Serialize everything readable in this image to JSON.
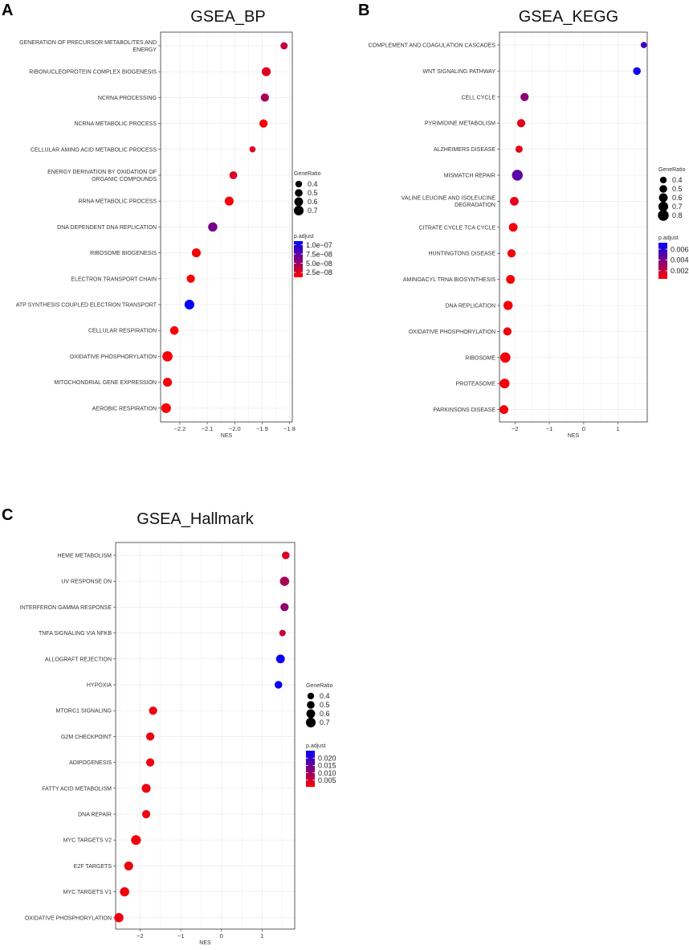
{
  "colors": {
    "low": "#ff0000",
    "high": "#0000ff",
    "grid": "#ebebeb",
    "frame": "#333333"
  },
  "chart_data": [
    {
      "id": "A",
      "panel_label": "A",
      "type": "scatter",
      "title": "GSEA_BP",
      "xlabel": "NES",
      "xlim": [
        -2.27,
        -1.79
      ],
      "xticks": [
        -2.2,
        -2.1,
        -2.0,
        -1.9,
        -1.8
      ],
      "xtick_labels": [
        "−2.2",
        "−2.1",
        "−2.0",
        "−1.9",
        "−1.8"
      ],
      "categories": [
        "GENERATION OF PRECURSOR METABOLITES AND ENERGY",
        "RIBONUCLEOPROTEIN COMPLEX BIOGENESIS",
        "NCRNA PROCESSING",
        "NCRNA METABOLIC PROCESS",
        "CELLULAR AMINO ACID METABOLIC PROCESS",
        "ENERGY DERIVATION BY OXIDATION OF ORGANIC COMPOUNDS",
        "RRNA METABOLIC PROCESS",
        "DNA DEPENDENT DNA REPLICATION",
        "RIBOSOME BIOGENESIS",
        "ELECTRON TRANSPORT CHAIN",
        "ATP SYNTHESIS COUPLED ELECTRON TRANSPORT",
        "CELLULAR RESPIRATION",
        "OXIDATIVE PHOSPHORYLATION",
        "MITOCHONDRIAL GENE EXPRESSION",
        "AEROBIC RESPIRATION"
      ],
      "label_lines": [
        [
          "GENERATION OF PRECURSOR METABOLITES AND",
          "ENERGY"
        ],
        [
          "RIBONUCLEOPROTEIN COMPLEX BIOGENESIS"
        ],
        [
          "NCRNA PROCESSING"
        ],
        [
          "NCRNA METABOLIC PROCESS"
        ],
        [
          "CELLULAR AMINO ACID METABOLIC PROCESS"
        ],
        [
          "ENERGY DERIVATION BY OXIDATION OF",
          "ORGANIC COMPOUNDS"
        ],
        [
          "RRNA METABOLIC PROCESS"
        ],
        [
          "DNA DEPENDENT DNA REPLICATION"
        ],
        [
          "RIBOSOME BIOGENESIS"
        ],
        [
          "ELECTRON TRANSPORT CHAIN"
        ],
        [
          "ATP SYNTHESIS COUPLED ELECTRON TRANSPORT"
        ],
        [
          "CELLULAR RESPIRATION"
        ],
        [
          "OXIDATIVE PHOSPHORYLATION"
        ],
        [
          "MITOCHONDRIAL GENE EXPRESSION"
        ],
        [
          "AEROBIC RESPIRATION"
        ]
      ],
      "x": [
        -1.82,
        -1.885,
        -1.89,
        -1.895,
        -1.935,
        -2.005,
        -2.02,
        -2.08,
        -2.14,
        -2.16,
        -2.165,
        -2.22,
        -2.245,
        -2.245,
        -2.25
      ],
      "size": [
        0.45,
        0.62,
        0.55,
        0.55,
        0.35,
        0.52,
        0.62,
        0.65,
        0.62,
        0.55,
        0.7,
        0.58,
        0.75,
        0.62,
        0.7
      ],
      "p_adjust": [
        3.5e-08,
        2.5e-08,
        4.5e-08,
        1.5e-08,
        2.5e-08,
        2.5e-08,
        1.5e-08,
        6.5e-08,
        1.5e-08,
        1.5e-08,
        1.1e-07,
        1.5e-08,
        1.5e-08,
        1.5e-08,
        1.5e-08
      ],
      "legend": {
        "size_title": "GeneRatio",
        "size_values": [
          0.4,
          0.5,
          0.6,
          0.7
        ],
        "size_labels": [
          "0.4",
          "0.5",
          "0.6",
          "0.7"
        ],
        "color_title": "p.adjust",
        "color_range": [
          1.2e-08,
          1.1e-07
        ],
        "color_ticks": [
          1e-07,
          7.5e-08,
          5e-08,
          2.5e-08
        ],
        "color_labels": [
          "1.0e−07",
          "7.5e−08",
          "5.0e−08",
          "2.5e−08"
        ]
      }
    },
    {
      "id": "B",
      "panel_label": "B",
      "type": "scatter",
      "title": "GSEA_KEGG",
      "xlabel": "NES",
      "xlim": [
        -2.45,
        1.85
      ],
      "xticks": [
        -2,
        -1,
        0,
        1
      ],
      "xtick_labels": [
        "−2",
        "−1",
        "0",
        "1"
      ],
      "categories": [
        "COMPLEMENT AND COAGULATION CASCADES",
        "WNT SIGNALING PATHWAY",
        "CELL CYCLE",
        "PYRIMIDINE METABOLISM",
        "ALZHEIMERS DISEASE",
        "MISMATCH REPAIR",
        "VALINE LEUCINE AND ISOLEUCINE DEGRADATION",
        "CITRATE CYCLE TCA CYCLE",
        "HUNTINGTONS DISEASE",
        "AMINOACYL TRNA BIOSYNTHESIS",
        "DNA REPLICATION",
        "OXIDATIVE PHOSPHORYLATION",
        "RIBOSOME",
        "PROTEASOME",
        "PARKINSONS DISEASE"
      ],
      "label_lines": [
        [
          "COMPLEMENT AND COAGULATION CASCADES"
        ],
        [
          "WNT SIGNALING PATHWAY"
        ],
        [
          "CELL CYCLE"
        ],
        [
          "PYRIMIDINE METABOLISM"
        ],
        [
          "ALZHEIMERS DISEASE"
        ],
        [
          "MISMATCH REPAIR"
        ],
        [
          "VALINE LEUCINE AND ISOLEUCINE",
          "DEGRADATION"
        ],
        [
          "CITRATE CYCLE TCA CYCLE"
        ],
        [
          "HUNTINGTONS DISEASE"
        ],
        [
          "AMINOACYL TRNA BIOSYNTHESIS"
        ],
        [
          "DNA REPLICATION"
        ],
        [
          "OXIDATIVE PHOSPHORYLATION"
        ],
        [
          "RIBOSOME"
        ],
        [
          "PROTEASOME"
        ],
        [
          "PARKINSONS DISEASE"
        ]
      ],
      "x": [
        1.75,
        1.55,
        -1.72,
        -1.82,
        -1.88,
        -1.93,
        -2.02,
        -2.05,
        -2.1,
        -2.13,
        -2.2,
        -2.22,
        -2.28,
        -2.3,
        -2.32
      ],
      "size": [
        0.35,
        0.5,
        0.55,
        0.55,
        0.45,
        0.8,
        0.6,
        0.6,
        0.55,
        0.6,
        0.65,
        0.55,
        0.75,
        0.7,
        0.6
      ],
      "p_adjust": [
        0.0055,
        0.0068,
        0.0035,
        0.0012,
        0.0012,
        0.0048,
        0.0012,
        0.0008,
        0.0008,
        0.0008,
        0.0008,
        0.0008,
        0.0008,
        0.0008,
        0.0008
      ],
      "legend": {
        "size_title": "GeneRatio",
        "size_values": [
          0.4,
          0.5,
          0.6,
          0.7,
          0.8
        ],
        "size_labels": [
          "0.4",
          "0.5",
          "0.6",
          "0.7",
          "0.8"
        ],
        "color_title": "p.adjust",
        "color_range": [
          0.0005,
          0.0072
        ],
        "color_ticks": [
          0.006,
          0.004,
          0.002
        ],
        "color_labels": [
          "0.006",
          "0.004",
          "0.002"
        ]
      }
    },
    {
      "id": "C",
      "panel_label": "C",
      "type": "scatter",
      "title": "GSEA_Hallmark",
      "xlabel": "NES",
      "xlim": [
        -2.6,
        1.8
      ],
      "xticks": [
        -2,
        -1,
        0,
        1
      ],
      "xtick_labels": [
        "−2",
        "−1",
        "0",
        "1"
      ],
      "categories": [
        "HEME METABOLISM",
        "UV RESPONSE DN",
        "INTERFERON GAMMA RESPONSE",
        "TNFA SIGNALING VIA NFKB",
        "ALLOGRAFT REJECTION",
        "HYPOXIA",
        "MTORC1 SIGNALING",
        "G2M CHECKPOINT",
        "ADIPOGENESIS",
        "FATTY ACID METABOLISM",
        "DNA REPAIR",
        "MYC TARGETS V2",
        "E2F TARGETS",
        "MYC TARGETS V1",
        "OXIDATIVE PHOSPHORYLATION"
      ],
      "label_lines": [
        [
          "HEME METABOLISM"
        ],
        [
          "UV RESPONSE DN"
        ],
        [
          "INTERFERON GAMMA RESPONSE"
        ],
        [
          "TNFA SIGNALING VIA NFKB"
        ],
        [
          "ALLOGRAFT REJECTION"
        ],
        [
          "HYPOXIA"
        ],
        [
          "MTORC1 SIGNALING"
        ],
        [
          "G2M CHECKPOINT"
        ],
        [
          "ADIPOGENESIS"
        ],
        [
          "FATTY ACID METABOLISM"
        ],
        [
          "DNA REPAIR"
        ],
        [
          "MYC TARGETS V2"
        ],
        [
          "E2F TARGETS"
        ],
        [
          "MYC TARGETS V1"
        ],
        [
          "OXIDATIVE PHOSPHORYLATION"
        ]
      ],
      "x": [
        1.58,
        1.55,
        1.55,
        1.5,
        1.45,
        1.4,
        -1.68,
        -1.75,
        -1.75,
        -1.85,
        -1.85,
        -2.1,
        -2.28,
        -2.38,
        -2.52
      ],
      "size": [
        0.5,
        0.65,
        0.55,
        0.38,
        0.6,
        0.5,
        0.55,
        0.55,
        0.55,
        0.62,
        0.55,
        0.7,
        0.62,
        0.65,
        0.65
      ],
      "p_adjust": [
        0.004,
        0.009,
        0.011,
        0.006,
        0.024,
        0.024,
        0.002,
        0.002,
        0.002,
        0.002,
        0.002,
        0.002,
        0.002,
        0.002,
        0.002
      ],
      "legend": {
        "size_title": "GeneRatio",
        "size_values": [
          0.4,
          0.5,
          0.6,
          0.7
        ],
        "size_labels": [
          "0.4",
          "0.5",
          "0.6",
          "0.7"
        ],
        "color_title": "p.adjust",
        "color_range": [
          0.0005,
          0.025
        ],
        "color_ticks": [
          0.02,
          0.015,
          0.01,
          0.005
        ],
        "color_labels": [
          "0.020",
          "0.015",
          "0.010",
          "0.005"
        ]
      }
    }
  ]
}
